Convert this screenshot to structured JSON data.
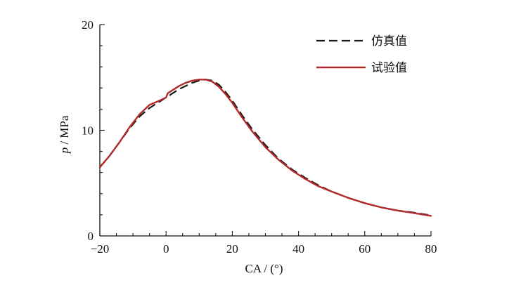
{
  "chart_data": {
    "type": "line",
    "xlabel": "CA / (°)",
    "ylabel_var": "p",
    "ylabel_unit": " / MPa",
    "xlim": [
      -20,
      80
    ],
    "ylim": [
      0,
      20
    ],
    "xticks": [
      -20,
      0,
      20,
      40,
      60,
      80
    ],
    "xtick_labels": [
      "−20",
      "0",
      "20",
      "40",
      "60",
      "80"
    ],
    "yticks": [
      0,
      10,
      20
    ],
    "ytick_labels": [
      "0",
      "10",
      "20"
    ],
    "grid": false,
    "legend_position": "top-right",
    "series": [
      {
        "name": "仿真值",
        "style": "dashed",
        "color": "#1a1a1a",
        "x": [
          -20,
          -17,
          -14,
          -11,
          -8,
          -5,
          -2,
          0,
          2,
          4,
          6,
          8,
          10,
          12,
          14,
          16,
          18,
          20,
          23,
          26,
          30,
          34,
          38,
          42,
          46,
          50,
          55,
          60,
          65,
          70,
          75,
          80
        ],
        "y": [
          6.5,
          7.6,
          8.9,
          10.2,
          11.3,
          12.1,
          12.7,
          13.1,
          13.5,
          13.9,
          14.2,
          14.5,
          14.7,
          14.8,
          14.7,
          14.3,
          13.6,
          12.8,
          11.4,
          10.1,
          8.6,
          7.3,
          6.3,
          5.5,
          4.8,
          4.2,
          3.6,
          3.1,
          2.7,
          2.4,
          2.2,
          1.95
        ]
      },
      {
        "name": "试验值",
        "style": "solid",
        "color": "#b22a2a",
        "x": [
          -20,
          -17,
          -14,
          -11,
          -8,
          -5,
          -2,
          0,
          0.5,
          2,
          4,
          6,
          8,
          10,
          12,
          14,
          16,
          18,
          20,
          23,
          26,
          30,
          34,
          38,
          42,
          46,
          50,
          55,
          60,
          65,
          70,
          75,
          80
        ],
        "y": [
          6.5,
          7.6,
          8.9,
          10.3,
          11.5,
          12.4,
          12.8,
          13.1,
          13.5,
          13.8,
          14.2,
          14.5,
          14.7,
          14.8,
          14.8,
          14.6,
          14.1,
          13.4,
          12.6,
          11.2,
          9.9,
          8.4,
          7.2,
          6.2,
          5.4,
          4.7,
          4.2,
          3.6,
          3.1,
          2.7,
          2.4,
          2.15,
          1.9
        ]
      }
    ]
  }
}
